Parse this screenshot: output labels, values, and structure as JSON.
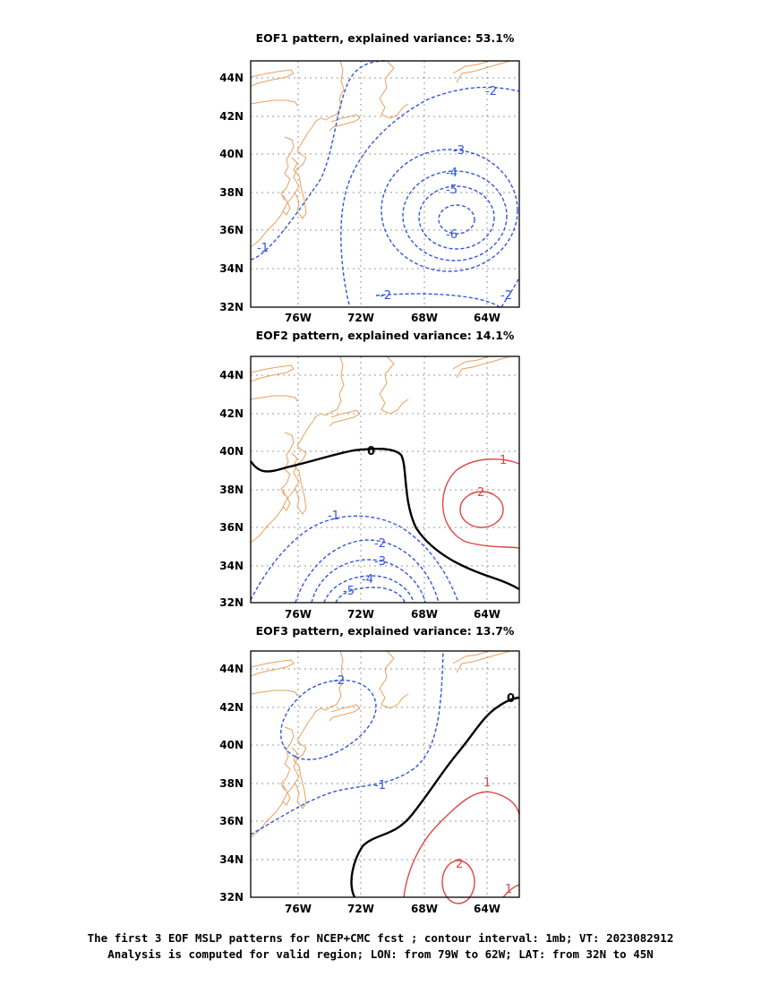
{
  "panels": [
    {
      "title": "EOF1 pattern, explained variance: 53.1%",
      "contour_labels": [
        {
          "value": "-1",
          "color": "#3355dd"
        },
        {
          "value": "-2",
          "color": "#3355dd"
        },
        {
          "value": "-2",
          "color": "#3355dd"
        },
        {
          "value": "-2",
          "color": "#3355dd"
        },
        {
          "value": "-3",
          "color": "#3355dd"
        },
        {
          "value": "-4",
          "color": "#3355dd"
        },
        {
          "value": "-5",
          "color": "#3355dd"
        },
        {
          "value": "-6",
          "color": "#3355dd"
        }
      ]
    },
    {
      "title": "EOF2 pattern, explained variance: 14.1%",
      "contour_labels": [
        {
          "value": "0",
          "color": "#000000"
        },
        {
          "value": "1",
          "color": "#e04444"
        },
        {
          "value": "2",
          "color": "#e04444"
        },
        {
          "value": "-1",
          "color": "#3355dd"
        },
        {
          "value": "-2",
          "color": "#3355dd"
        },
        {
          "value": "-3",
          "color": "#3355dd"
        },
        {
          "value": "-4",
          "color": "#3355dd"
        },
        {
          "value": "-5",
          "color": "#3355dd"
        }
      ]
    },
    {
      "title": "EOF3 pattern, explained variance: 13.7%",
      "contour_labels": [
        {
          "value": "-2",
          "color": "#3355dd"
        },
        {
          "value": "-1",
          "color": "#3355dd"
        },
        {
          "value": "0",
          "color": "#000000"
        },
        {
          "value": "1",
          "color": "#e04444"
        },
        {
          "value": "2",
          "color": "#e04444"
        },
        {
          "value": "1",
          "color": "#e04444"
        }
      ]
    }
  ],
  "lat_ticks": [
    "44N",
    "42N",
    "40N",
    "38N",
    "36N",
    "34N",
    "32N"
  ],
  "lon_ticks": [
    "76W",
    "72W",
    "68W",
    "64W"
  ],
  "colors": {
    "coastline": "#e8a060",
    "negative_contour": "#3355dd",
    "positive_contour": "#e04444",
    "zero_contour": "#000000",
    "grid": "#999999"
  },
  "caption": {
    "line1": "The first 3 EOF MSLP patterns for NCEP+CMC fcst ; contour interval: 1mb; VT: 2023082912",
    "line2": "Analysis is computed for valid region; LON: from 79W to 62W; LAT: from 32N to 45N"
  }
}
